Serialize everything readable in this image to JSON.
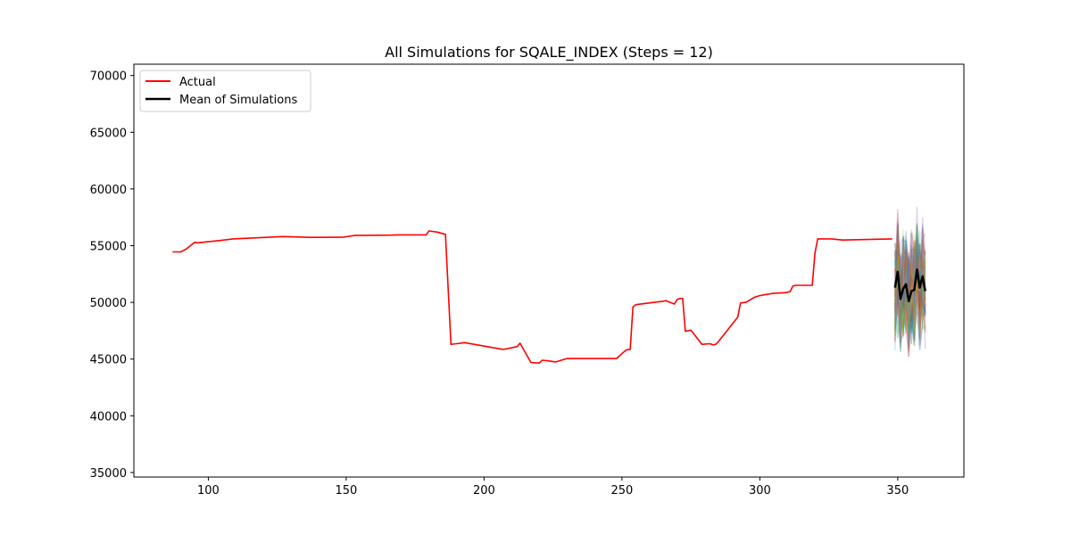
{
  "chart_data": {
    "type": "line",
    "title": "All Simulations for SQALE_INDEX (Steps = 12)",
    "xlabel": "",
    "ylabel": "",
    "xlim": [
      73,
      374
    ],
    "ylim": [
      34600,
      71000
    ],
    "xticks": [
      100,
      150,
      200,
      250,
      300,
      350
    ],
    "yticks": [
      35000,
      40000,
      45000,
      50000,
      55000,
      60000,
      65000,
      70000
    ],
    "grid": false,
    "legend": {
      "position": "top-left",
      "entries": [
        "Actual",
        "Mean of Simulations"
      ]
    },
    "series": [
      {
        "name": "Actual",
        "color": "#ff0000",
        "x": [
          87,
          90,
          92,
          95,
          96,
          100,
          104,
          109,
          127,
          137,
          149,
          153,
          166,
          169,
          179,
          180,
          183,
          186,
          188,
          193,
          207,
          212,
          213,
          217,
          220,
          221,
          223,
          226,
          230,
          248,
          251,
          252,
          253,
          254,
          255,
          265,
          266,
          268,
          269,
          270,
          271,
          272,
          273,
          274,
          275,
          279,
          282,
          283,
          284,
          285,
          292,
          293,
          295,
          298,
          300,
          305,
          309,
          311,
          312,
          313,
          319,
          320,
          321,
          323,
          326,
          330,
          348
        ],
        "y": [
          54450,
          54450,
          54700,
          55300,
          55250,
          55350,
          55450,
          55600,
          55800,
          55730,
          55750,
          55900,
          55930,
          55950,
          55950,
          56300,
          56200,
          56000,
          46300,
          46450,
          45850,
          46100,
          46400,
          44700,
          44650,
          44900,
          44850,
          44750,
          45050,
          45050,
          45700,
          45850,
          45850,
          49600,
          49800,
          50100,
          50150,
          49950,
          49850,
          50250,
          50350,
          50350,
          47450,
          47500,
          47550,
          46300,
          46350,
          46250,
          46300,
          46550,
          48700,
          49950,
          50000,
          50450,
          50600,
          50800,
          50850,
          50950,
          51450,
          51500,
          51500,
          54400,
          55600,
          55600,
          55600,
          55500,
          55600
        ]
      },
      {
        "name": "Mean of Simulations",
        "color": "#000000",
        "x": [
          349,
          350,
          351,
          352,
          353,
          354,
          355,
          356,
          357,
          358,
          359,
          360
        ],
        "y": [
          51300,
          52700,
          50300,
          51200,
          51600,
          50100,
          51000,
          51100,
          52900,
          51300,
          52300,
          51000
        ]
      }
    ]
  }
}
